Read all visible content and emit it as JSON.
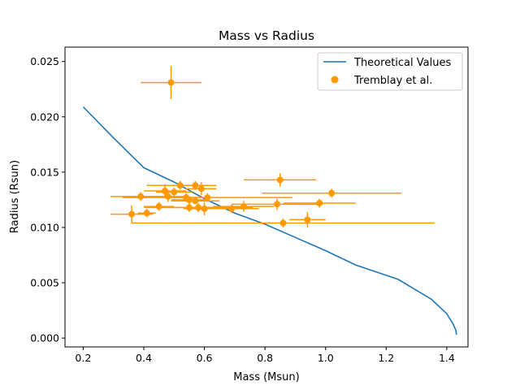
{
  "colors": {
    "theory": "#1f77b4",
    "observed": "#ff9900",
    "axes": "#000000",
    "legend_border": "#cccccc"
  },
  "chart_data": {
    "type": "scatter",
    "title": "Mass vs Radius",
    "xlabel": "Mass (Msun)",
    "ylabel": "Radius (Rsun)",
    "xlim": [
      0.14,
      1.47
    ],
    "ylim": [
      -0.0008,
      0.0263
    ],
    "xticks": [
      0.2,
      0.4,
      0.6,
      0.8,
      1.0,
      1.2,
      1.4
    ],
    "xtick_labels": [
      "0.2",
      "0.4",
      "0.6",
      "0.8",
      "1.0",
      "1.2",
      "1.4"
    ],
    "yticks": [
      0.0,
      0.005,
      0.01,
      0.015,
      0.02,
      0.025
    ],
    "ytick_labels": [
      "0.000",
      "0.005",
      "0.010",
      "0.015",
      "0.020",
      "0.025"
    ],
    "grid": false,
    "legend_position": "top-right",
    "series": [
      {
        "name": "Theoretical Values",
        "type": "line",
        "x": [
          0.2,
          0.3,
          0.4,
          0.5,
          0.6,
          0.7,
          0.8,
          0.9,
          1.0,
          1.1,
          1.24,
          1.35,
          1.4,
          1.42,
          1.43,
          1.432
        ],
        "y": [
          0.0209,
          0.0181,
          0.0154,
          0.0141,
          0.0126,
          0.0113,
          0.0103,
          0.0091,
          0.0079,
          0.0066,
          0.0053,
          0.0035,
          0.0022,
          0.0013,
          0.0007,
          0.0003
        ]
      },
      {
        "name": "Tremblay et al.",
        "type": "scatter",
        "points": [
          {
            "x": 0.49,
            "y": 0.0231,
            "xerr": 0.1,
            "yerr": 0.0015
          },
          {
            "x": 0.85,
            "y": 0.0143,
            "xerr": 0.12,
            "yerr": 0.0006
          },
          {
            "x": 0.52,
            "y": 0.0138,
            "xerr": 0.11,
            "yerr": 0.0004
          },
          {
            "x": 0.57,
            "y": 0.0138,
            "xerr": 0.07,
            "yerr": 0.0004
          },
          {
            "x": 0.59,
            "y": 0.0135,
            "xerr": 0.05,
            "yerr": 0.0006
          },
          {
            "x": 0.47,
            "y": 0.0133,
            "xerr": 0.07,
            "yerr": 0.0006
          },
          {
            "x": 0.5,
            "y": 0.0132,
            "xerr": 0.06,
            "yerr": 0.0004
          },
          {
            "x": 1.02,
            "y": 0.0131,
            "xerr": 0.23,
            "yerr": 0.0004
          },
          {
            "x": 0.48,
            "y": 0.0128,
            "xerr": 0.06,
            "yerr": 0.0005
          },
          {
            "x": 0.39,
            "y": 0.0128,
            "xerr": 0.1,
            "yerr": 0.0004
          },
          {
            "x": 0.54,
            "y": 0.0127,
            "xerr": 0.09,
            "yerr": 0.0004
          },
          {
            "x": 0.61,
            "y": 0.0127,
            "xerr": 0.28,
            "yerr": 0.0004
          },
          {
            "x": 0.55,
            "y": 0.0125,
            "xerr": 0.06,
            "yerr": 0.0003
          },
          {
            "x": 0.57,
            "y": 0.0124,
            "xerr": 0.08,
            "yerr": 0.0003
          },
          {
            "x": 0.98,
            "y": 0.0122,
            "xerr": 0.12,
            "yerr": 0.0004
          },
          {
            "x": 0.84,
            "y": 0.0121,
            "xerr": 0.15,
            "yerr": 0.0005
          },
          {
            "x": 0.73,
            "y": 0.0119,
            "xerr": 0.1,
            "yerr": 0.0005
          },
          {
            "x": 0.45,
            "y": 0.0119,
            "xerr": 0.05,
            "yerr": 0.0004
          },
          {
            "x": 0.55,
            "y": 0.0118,
            "xerr": 0.08,
            "yerr": 0.0004
          },
          {
            "x": 0.58,
            "y": 0.0118,
            "xerr": 0.18,
            "yerr": 0.0004
          },
          {
            "x": 0.6,
            "y": 0.0117,
            "xerr": 0.07,
            "yerr": 0.0006
          },
          {
            "x": 0.69,
            "y": 0.0117,
            "xerr": 0.09,
            "yerr": 0.0004
          },
          {
            "x": 0.41,
            "y": 0.0113,
            "xerr": 0.03,
            "yerr": 0.0004
          },
          {
            "x": 0.36,
            "y": 0.0112,
            "xerr": 0.07,
            "yerr": 0.0008
          },
          {
            "x": 0.94,
            "y": 0.0107,
            "xerr": 0.06,
            "yerr": 0.0007
          },
          {
            "x": 0.86,
            "y": 0.0104,
            "xerr": 0.5,
            "yerr": 0.0004
          }
        ]
      }
    ]
  }
}
